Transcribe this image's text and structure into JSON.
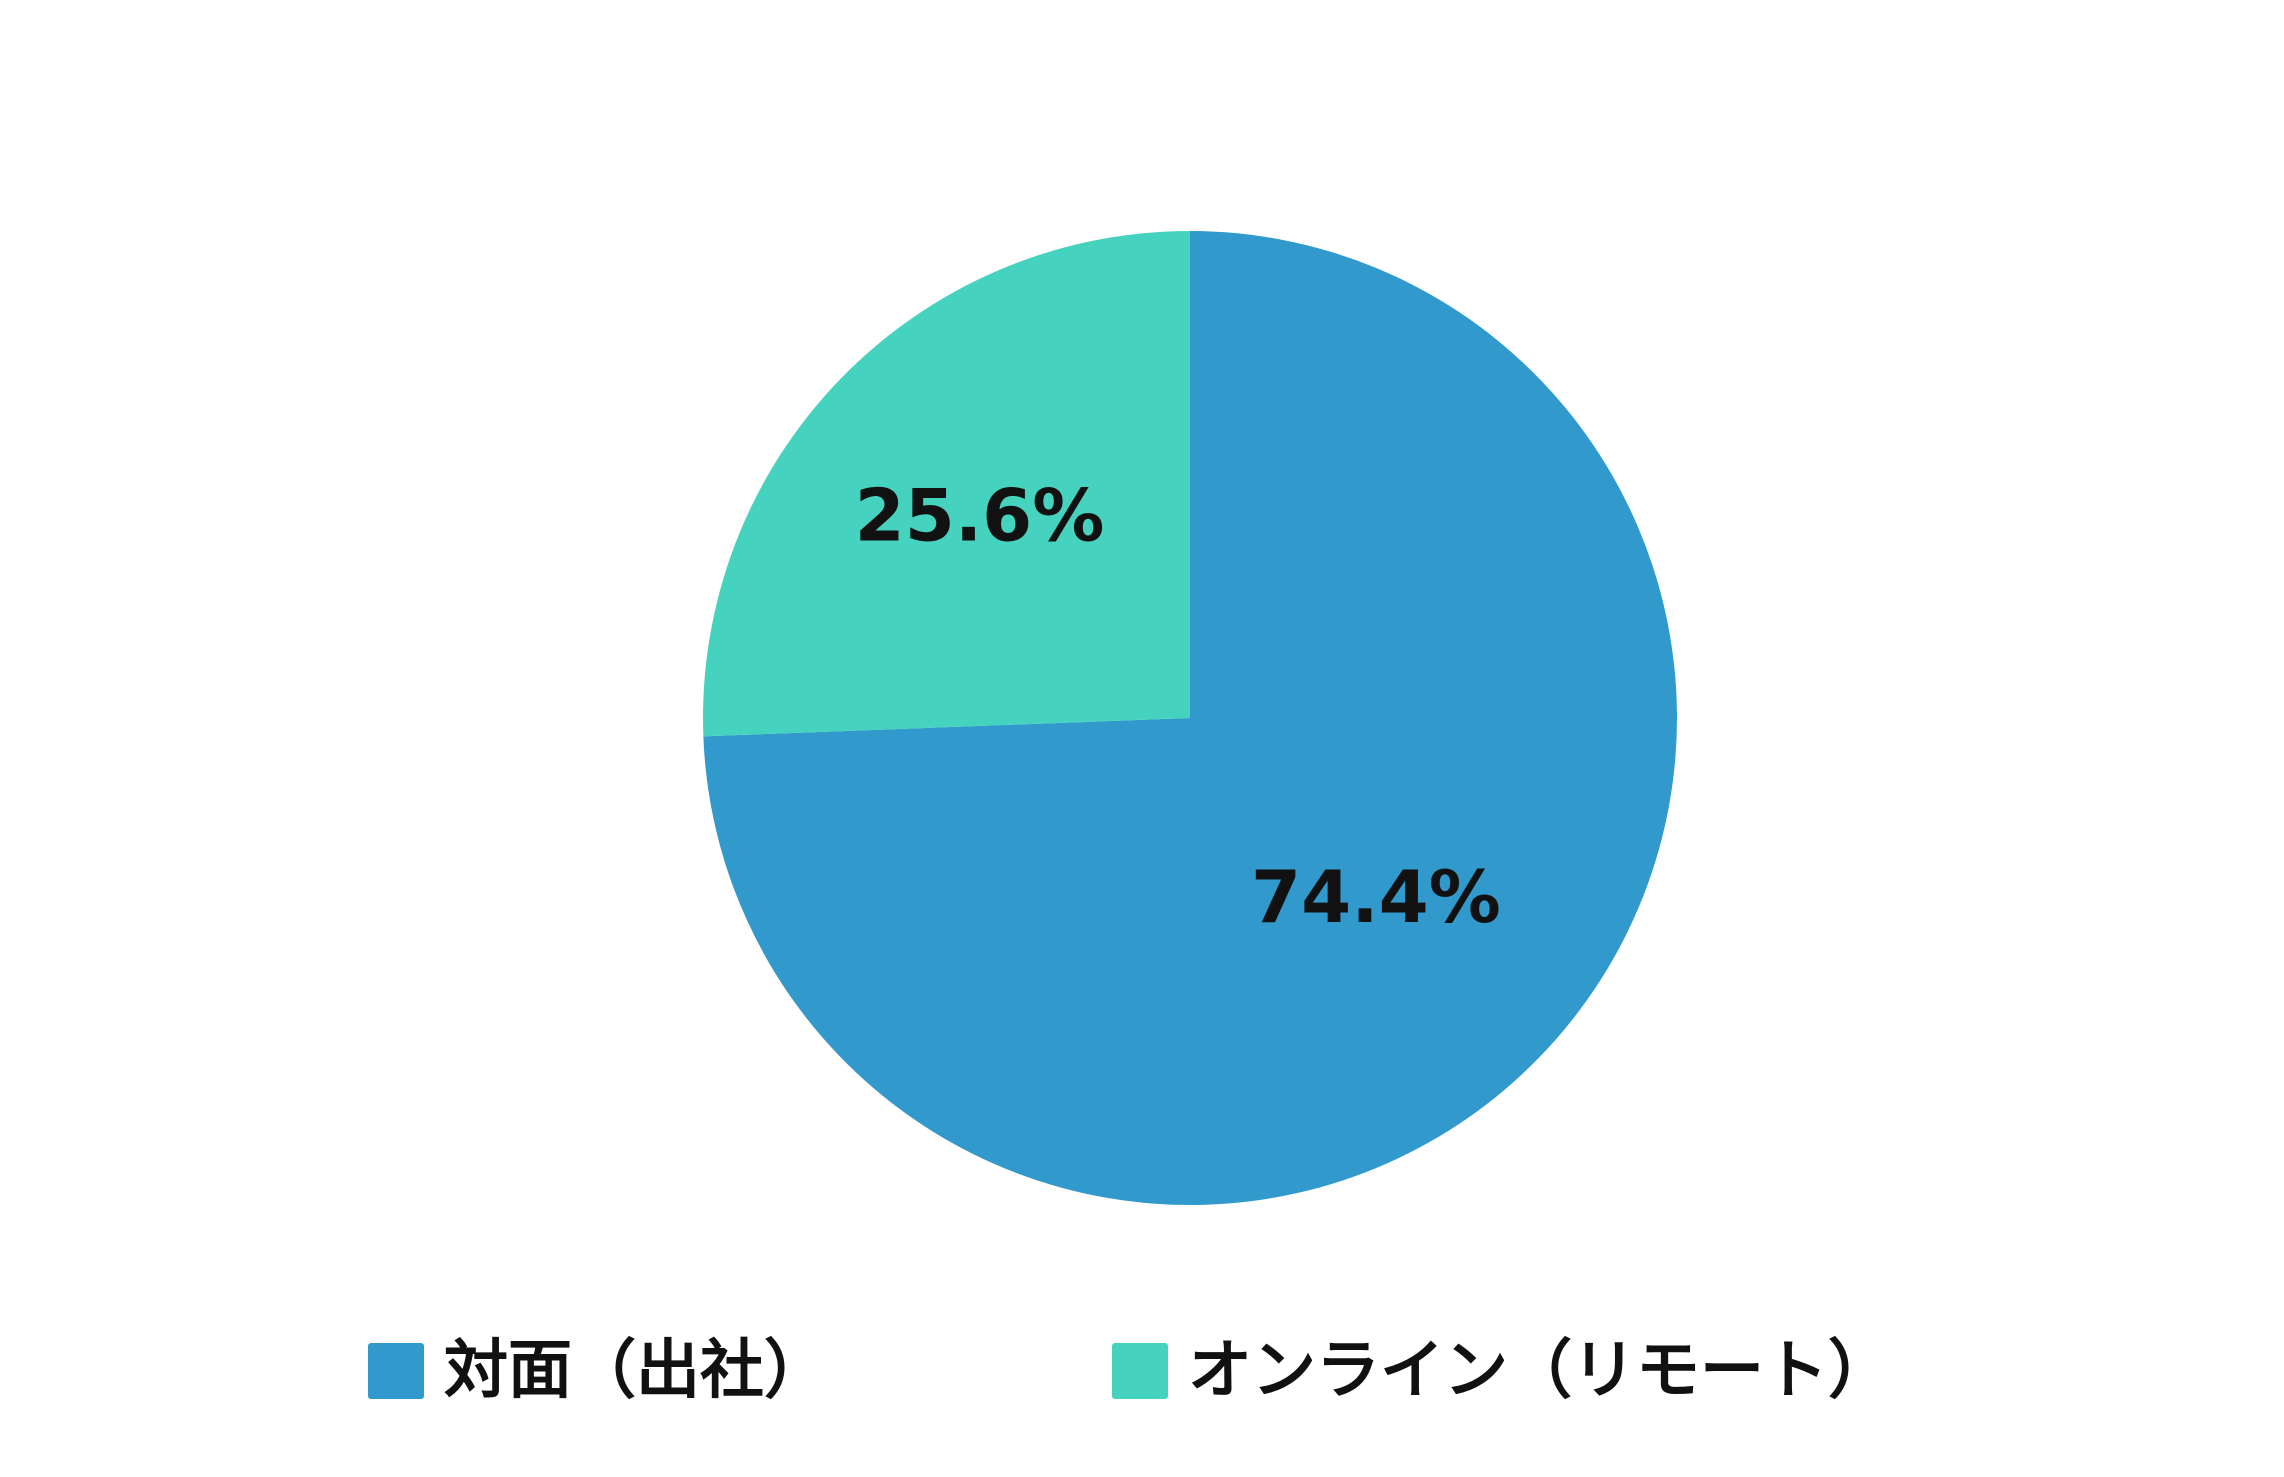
{
  "chart_data": {
    "type": "pie",
    "categories": [
      "対面（出社）",
      "オンライン（リモート）"
    ],
    "values": [
      74.4,
      25.6
    ],
    "value_labels": [
      "74.4%",
      "25.6%"
    ],
    "colors": [
      "#3199CB",
      "#45D3BF"
    ],
    "title": "",
    "legend_position": "bottom",
    "start_angle": "12 o'clock",
    "direction": "clockwise"
  }
}
